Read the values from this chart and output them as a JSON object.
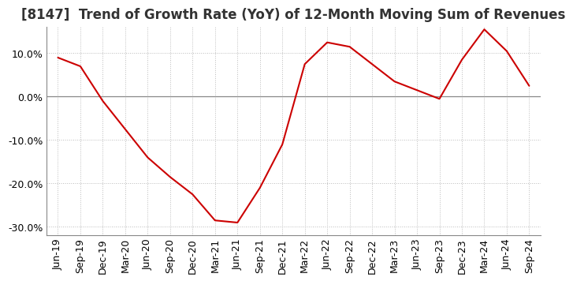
{
  "title": "[8147]  Trend of Growth Rate (YoY) of 12-Month Moving Sum of Revenues",
  "x_labels": [
    "Jun-19",
    "Sep-19",
    "Dec-19",
    "Mar-20",
    "Jun-20",
    "Sep-20",
    "Dec-20",
    "Mar-21",
    "Jun-21",
    "Sep-21",
    "Dec-21",
    "Mar-22",
    "Jun-22",
    "Sep-22",
    "Dec-22",
    "Mar-23",
    "Jun-23",
    "Sep-23",
    "Dec-23",
    "Mar-24",
    "Jun-24",
    "Sep-24"
  ],
  "y_values": [
    9.0,
    7.0,
    -1.0,
    -7.5,
    -14.0,
    -18.5,
    -22.5,
    -28.5,
    -29.0,
    -21.0,
    -11.0,
    7.5,
    12.5,
    11.5,
    7.5,
    3.5,
    1.5,
    -0.5,
    8.5,
    15.5,
    10.5,
    2.5
  ],
  "line_color": "#cc0000",
  "background_color": "#ffffff",
  "grid_color": "#bbbbbb",
  "ylim": [
    -32,
    16
  ],
  "yticks": [
    -30.0,
    -20.0,
    -10.0,
    0.0,
    10.0
  ],
  "title_fontsize": 12,
  "tick_fontsize": 9
}
